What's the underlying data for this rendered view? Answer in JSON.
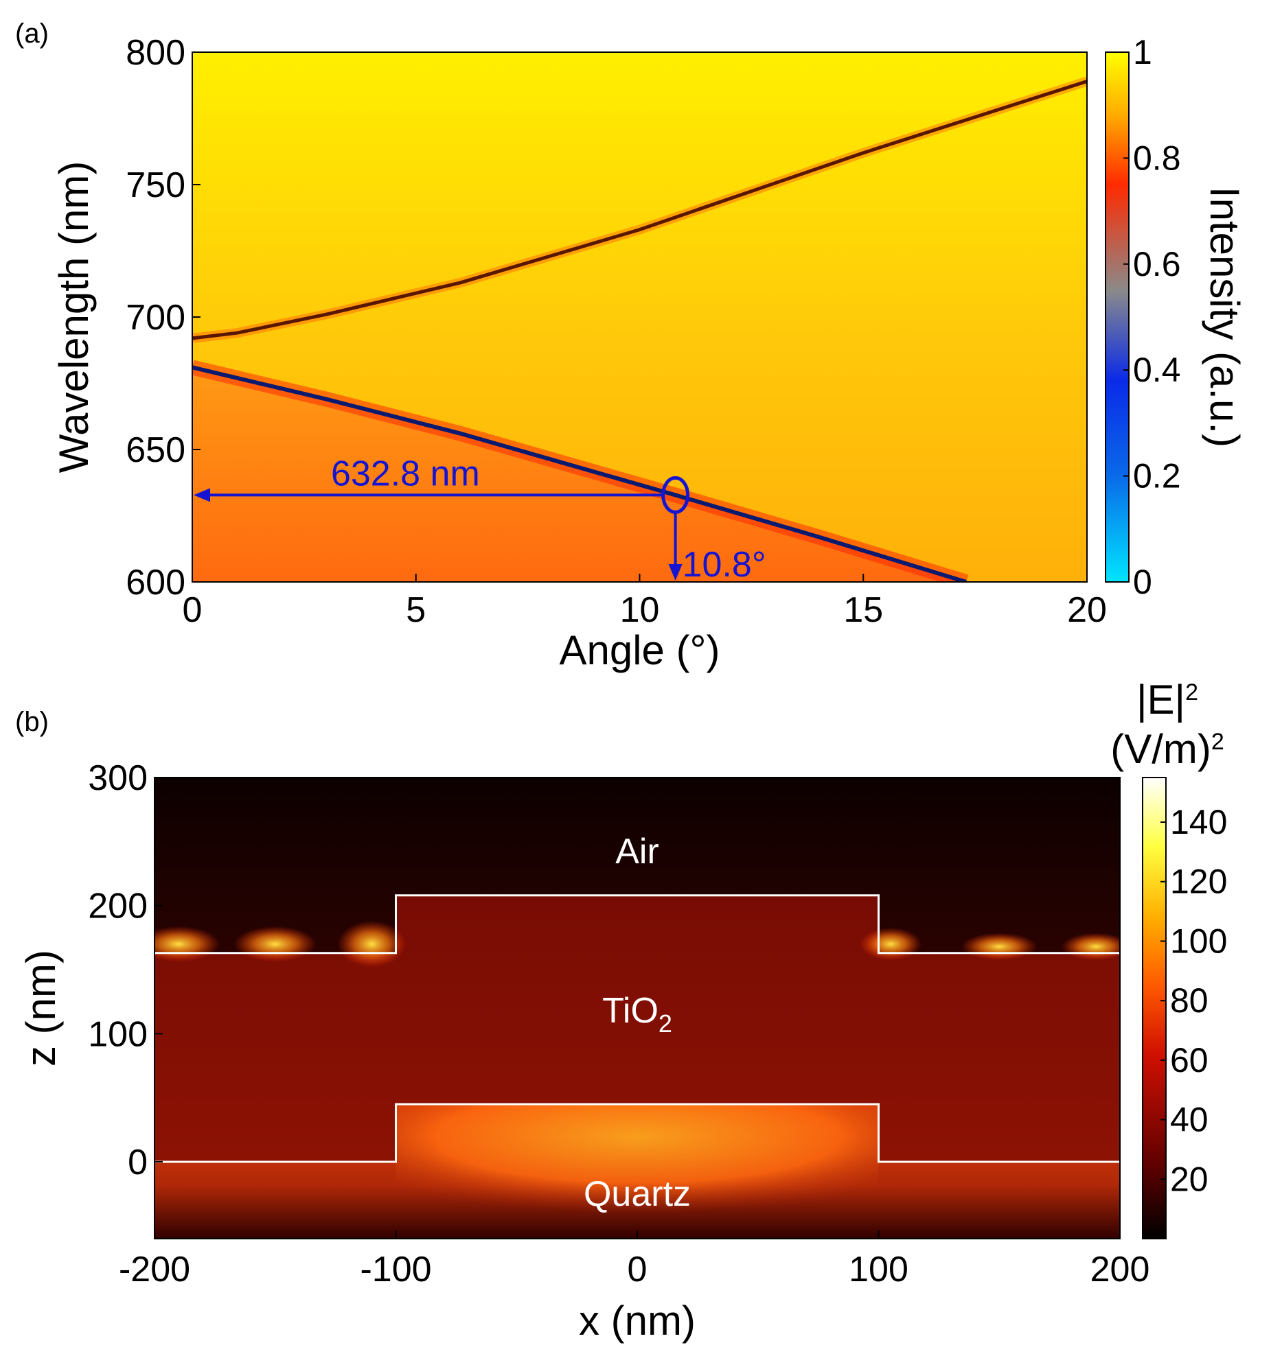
{
  "chart_data": [
    {
      "panel": "(a)",
      "type": "heatmap",
      "title": "",
      "xlabel": "Angle (°)",
      "ylabel": "Wavelength (nm)",
      "xlim": [
        0,
        20
      ],
      "ylim": [
        600,
        800
      ],
      "xticks": [
        "0",
        "5",
        "10",
        "15",
        "20"
      ],
      "yticks": [
        "600",
        "650",
        "700",
        "750",
        "800"
      ],
      "colorbar": {
        "label": "Intensity (a.u.)",
        "range": [
          0,
          1
        ],
        "ticks": [
          "0",
          "0.2",
          "0.4",
          "0.6",
          "0.8",
          "1"
        ],
        "colors": [
          "#00e5ff",
          "#0a2ae8",
          "#8a8a8a",
          "#ff2a00",
          "#ffaa00",
          "#ffff00"
        ]
      },
      "series": [
        {
          "name": "upper resonance",
          "x": [
            0,
            1,
            3,
            6,
            10,
            15,
            20
          ],
          "y": [
            692,
            694,
            701,
            713,
            733,
            762,
            789
          ]
        },
        {
          "name": "lower resonance",
          "x": [
            0,
            3,
            6,
            10.8,
            14,
            17.3
          ],
          "y": [
            681,
            669,
            656,
            632.8,
            617,
            600
          ]
        }
      ],
      "annotation": {
        "wavelength_label": "632.8 nm",
        "angle_label": "10.8°",
        "point": {
          "x": 10.8,
          "y": 632.8
        }
      }
    },
    {
      "panel": "(b)",
      "type": "heatmap",
      "title": "",
      "xlabel": "x (nm)",
      "ylabel": "z (nm)",
      "xlim": [
        -200,
        200
      ],
      "ylim": [
        -60,
        300
      ],
      "xticks": [
        "-200",
        "-100",
        "0",
        "100",
        "200"
      ],
      "yticks": [
        "0",
        "100",
        "200",
        "300"
      ],
      "colorbar": {
        "label_line1": "|E|",
        "label_sup1": "2",
        "label_line2": "(V/m)",
        "label_sup2": "2",
        "range": [
          0,
          155
        ],
        "ticks": [
          "20",
          "40",
          "60",
          "80",
          "100",
          "120",
          "140"
        ],
        "colors": [
          "#000000",
          "#5a0000",
          "#d01000",
          "#ff5a00",
          "#ffb000",
          "#ffff40",
          "#ffffff"
        ]
      },
      "regions": {
        "air": "Air",
        "tio2": "TiO",
        "tio2_sub": "2",
        "quartz": "Quartz"
      },
      "structure": {
        "upper_grating": {
          "x": [
            -200,
            -100,
            -100,
            100,
            100,
            200
          ],
          "z": [
            163,
            163,
            208,
            208,
            163,
            163
          ]
        },
        "lower_grating": {
          "x": [
            -200,
            -100,
            -100,
            100,
            100,
            200
          ],
          "z": [
            0,
            0,
            45,
            45,
            0,
            0
          ]
        }
      }
    }
  ]
}
